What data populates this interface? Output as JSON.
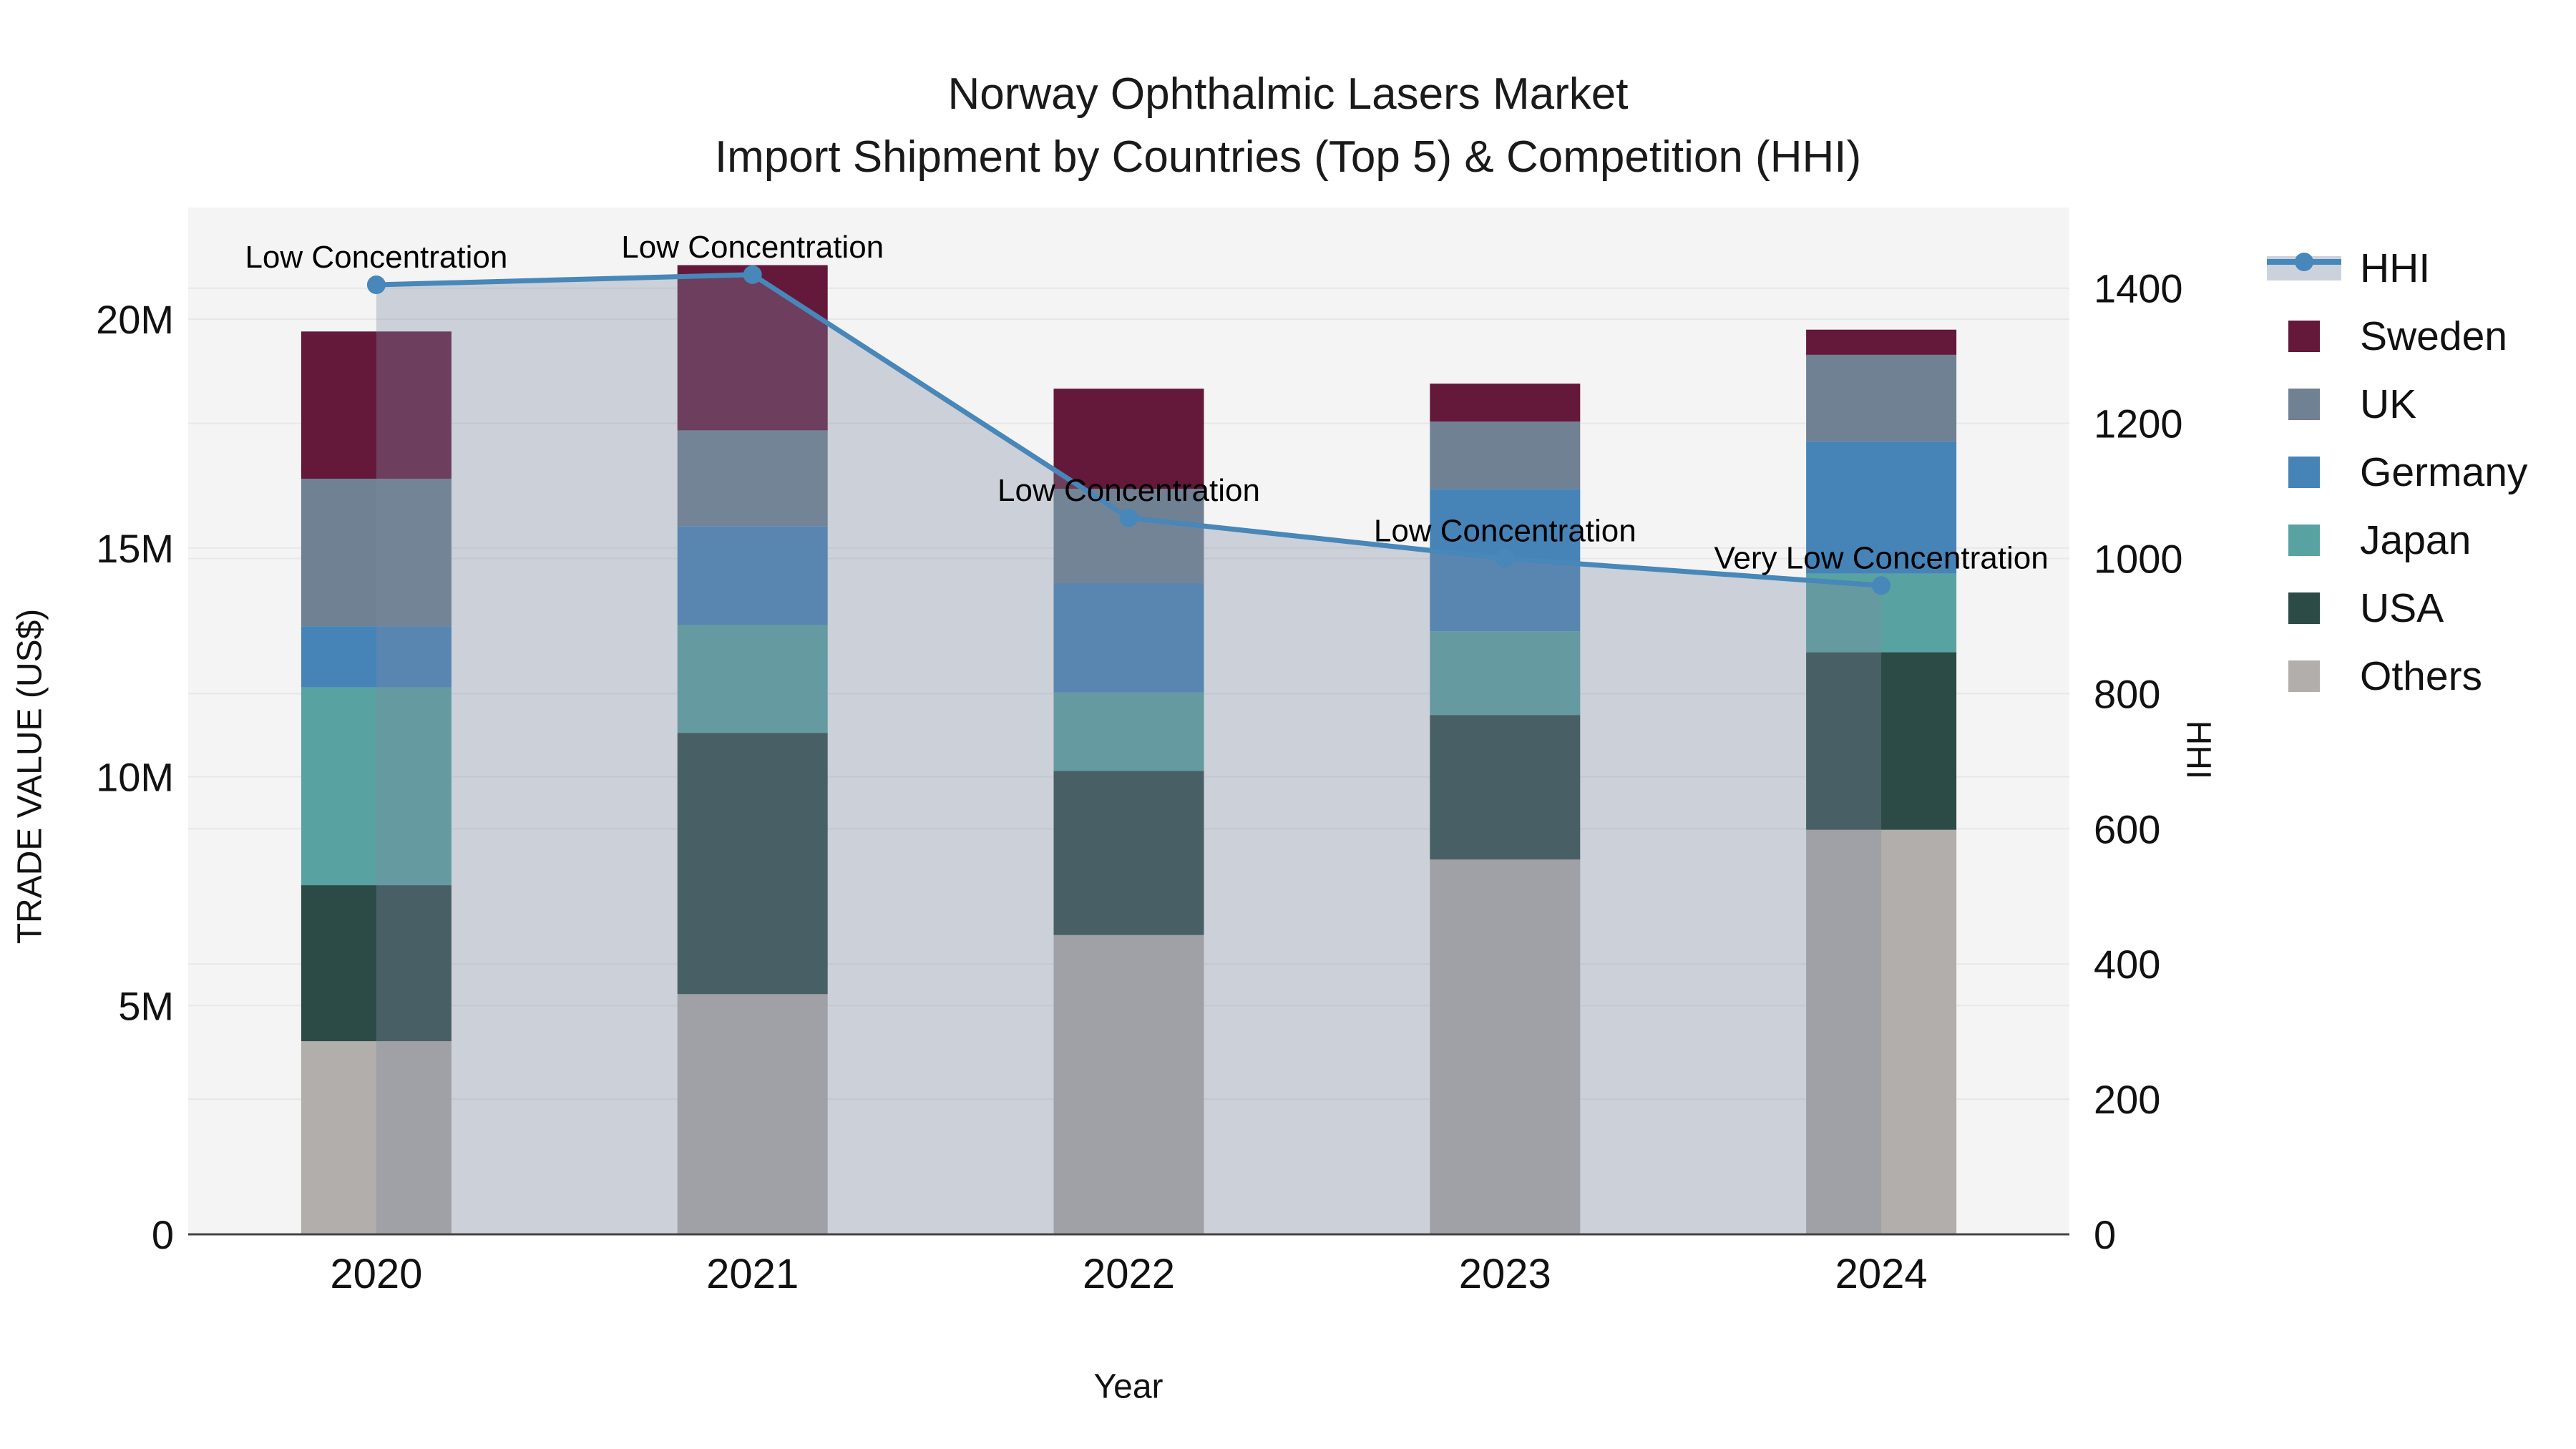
{
  "title": {
    "line1": "Norway Ophthalmic Lasers Market",
    "line2": "Import Shipment by Countries (Top 5) & Competition (HHI)"
  },
  "axes": {
    "x": {
      "title": "Year",
      "categories": [
        "2020",
        "2021",
        "2022",
        "2023",
        "2024"
      ]
    },
    "y_left": {
      "title": "TRADE VALUE (US$)",
      "tick_labels": [
        "0",
        "5M",
        "10M",
        "15M",
        "20M"
      ],
      "tick_values": [
        0,
        5,
        10,
        15,
        20
      ]
    },
    "y_right": {
      "title": "HHI",
      "tick_labels": [
        "0",
        "200",
        "400",
        "600",
        "800",
        "1000",
        "1200",
        "1400"
      ],
      "tick_values": [
        0,
        200,
        400,
        600,
        800,
        1000,
        1200,
        1400
      ]
    }
  },
  "legend": {
    "items": [
      {
        "name": "HHI",
        "type": "line"
      },
      {
        "name": "Sweden",
        "type": "square"
      },
      {
        "name": "UK",
        "type": "square"
      },
      {
        "name": "Germany",
        "type": "square"
      },
      {
        "name": "Japan",
        "type": "square"
      },
      {
        "name": "USA",
        "type": "square"
      },
      {
        "name": "Others",
        "type": "square"
      }
    ]
  },
  "colors": {
    "Sweden": "#64183a",
    "UK": "#6f8192",
    "Germany": "#4684b8",
    "Japan": "#58a3a1",
    "USA": "#2c4b47",
    "Others": "#b1aeab",
    "HHI": "#4787b9",
    "hhi_area_overlay": "rgba(125,138,160,0.34)",
    "hhi_area_legend": "#ccd2dc",
    "plot_bg": "#f4f4f4",
    "gridline": "rgba(0,0,0,0.05)",
    "axis_line": "#444444",
    "text": "#111111"
  },
  "chart_data": {
    "type": "bar+line",
    "title": "Norway Ophthalmic Lasers Market — Import Shipment by Countries (Top 5) & Competition (HHI)",
    "categories": [
      "2020",
      "2021",
      "2022",
      "2023",
      "2024"
    ],
    "units": "US$ millions (left axis), HHI index (right axis)",
    "stack_order_bottom_to_top": [
      "Others",
      "USA",
      "Japan",
      "Germany",
      "UK",
      "Sweden"
    ],
    "series": [
      {
        "name": "Sweden",
        "values": [
          3.22,
          3.61,
          2.19,
          0.83,
          0.55
        ]
      },
      {
        "name": "UK",
        "values": [
          3.22,
          2.1,
          2.06,
          1.47,
          1.89
        ]
      },
      {
        "name": "Germany",
        "values": [
          1.34,
          2.16,
          2.39,
          3.11,
          2.89
        ]
      },
      {
        "name": "Japan",
        "values": [
          4.32,
          2.35,
          1.71,
          1.83,
          1.72
        ]
      },
      {
        "name": "USA",
        "values": [
          3.41,
          5.71,
          3.59,
          3.16,
          3.88
        ]
      },
      {
        "name": "Others",
        "values": [
          4.22,
          5.25,
          6.54,
          8.19,
          8.84
        ]
      }
    ],
    "bar_totals": [
      19.73,
      21.18,
      18.48,
      18.59,
      19.77
    ],
    "line": {
      "name": "HHI",
      "values": [
        1405,
        1420,
        1060,
        1000,
        960
      ],
      "axis": "right",
      "has_area_fill": true
    },
    "annotations": [
      {
        "year": "2020",
        "text": "Low Concentration"
      },
      {
        "year": "2021",
        "text": "Low Concentration"
      },
      {
        "year": "2022",
        "text": "Low Concentration"
      },
      {
        "year": "2023",
        "text": "Low Concentration"
      },
      {
        "year": "2024",
        "text": "Very Low Concentration"
      }
    ],
    "xlabel": "Year",
    "ylabel": "TRADE VALUE (US$)",
    "y2label": "HHI",
    "ylim": [
      0,
      22.4
    ],
    "y2lim": [
      0,
      1520
    ],
    "grid": true,
    "legend_position": "right"
  }
}
